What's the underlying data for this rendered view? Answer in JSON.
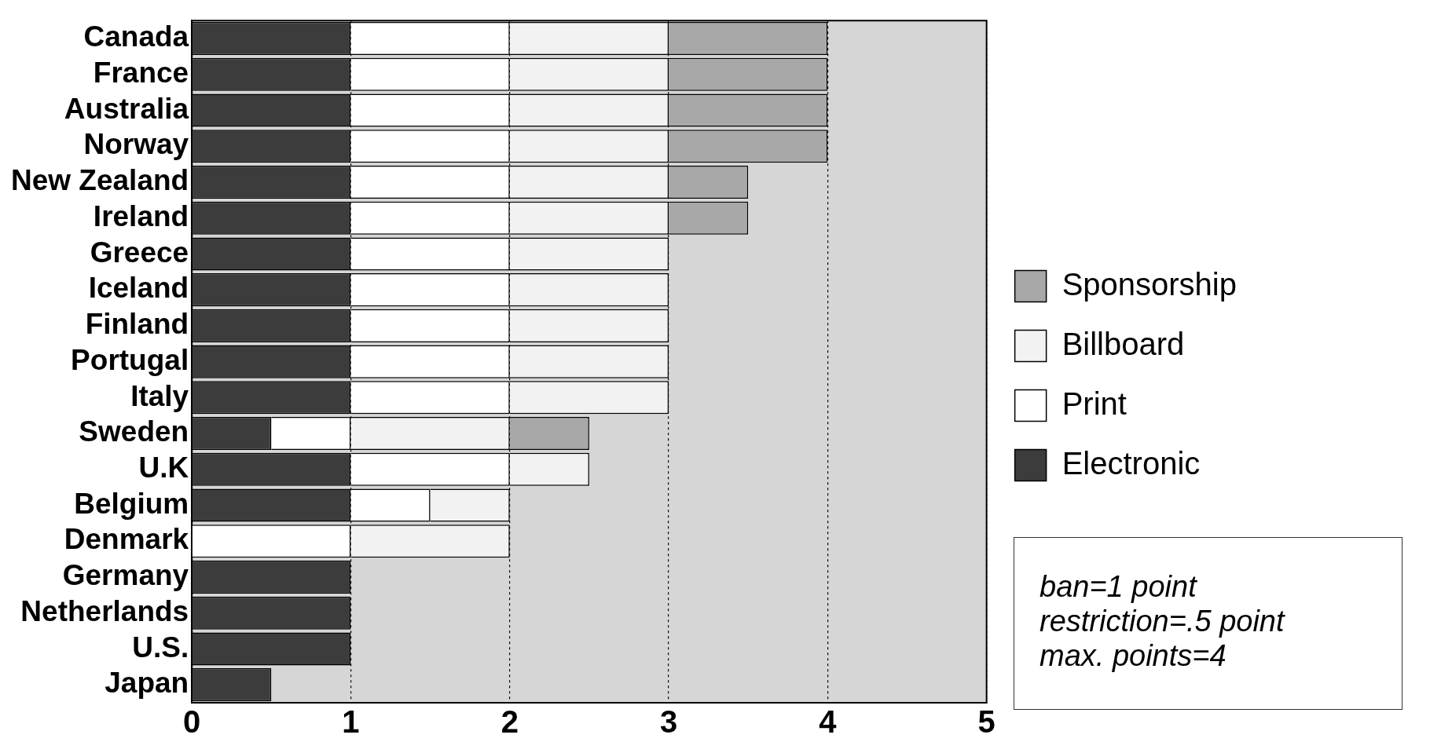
{
  "chart_data": {
    "type": "bar",
    "orientation": "horizontal",
    "stacked": true,
    "categories": [
      "Canada",
      "France",
      "Australia",
      "Norway",
      "New Zealand",
      "Ireland",
      "Greece",
      "Iceland",
      "Finland",
      "Portugal",
      "Italy",
      "Sweden",
      "U.K",
      "Belgium",
      "Denmark",
      "Germany",
      "Netherlands",
      "U.S.",
      "Japan"
    ],
    "series": [
      {
        "name": "Electronic",
        "color": "#3c3c3c",
        "values": [
          1,
          1,
          1,
          1,
          1,
          1,
          1,
          1,
          1,
          1,
          1,
          0.5,
          1,
          1,
          null,
          1,
          1,
          1,
          0.5
        ]
      },
      {
        "name": "Print",
        "color": "#ffffff",
        "values": [
          1,
          1,
          1,
          1,
          1,
          1,
          1,
          1,
          1,
          1,
          1,
          0.5,
          1,
          0.5,
          1,
          null,
          null,
          null,
          null
        ]
      },
      {
        "name": "Billboard",
        "color": "#f2f2f2",
        "values": [
          1,
          1,
          1,
          1,
          1,
          1,
          1,
          1,
          1,
          1,
          1,
          1,
          0.5,
          0.5,
          1,
          null,
          null,
          null,
          null
        ]
      },
      {
        "name": "Sponsorship",
        "color": "#a8a8a8",
        "values": [
          1,
          1,
          1,
          1,
          0.5,
          0.5,
          null,
          null,
          null,
          null,
          null,
          0.5,
          null,
          null,
          null,
          null,
          null,
          null,
          null
        ]
      }
    ],
    "xlim": [
      0,
      5
    ],
    "xticks": [
      0,
      1,
      2,
      3,
      4,
      5
    ],
    "grid": "x",
    "legend": "right",
    "annotations": [
      "ban=1 point",
      "restriction=.5 point",
      "max. points=4"
    ]
  }
}
